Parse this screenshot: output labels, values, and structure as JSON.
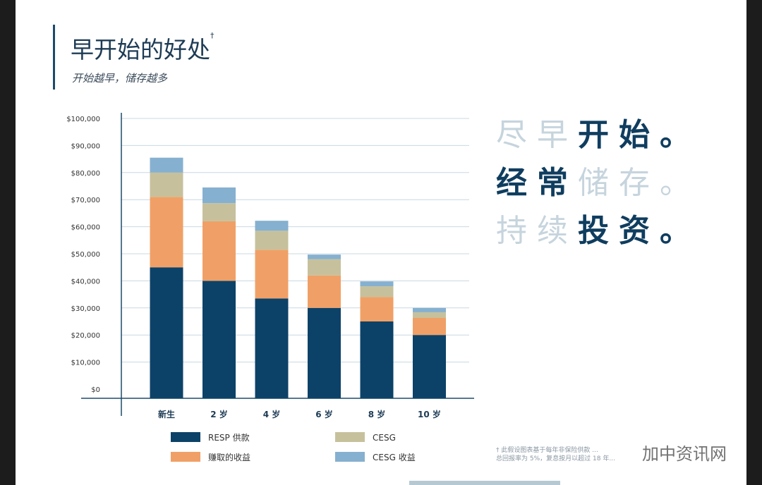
{
  "title": "早开始的好处",
  "title_mark": "†",
  "subtitle": "开始越早，储存越多",
  "slogan": [
    [
      {
        "t": "尽",
        "s": "l"
      },
      {
        "t": "早",
        "s": "l"
      },
      {
        "t": "开",
        "s": "d"
      },
      {
        "t": "始",
        "s": "d"
      },
      {
        "t": "。",
        "s": "d"
      }
    ],
    [
      {
        "t": "经",
        "s": "d"
      },
      {
        "t": "常",
        "s": "d"
      },
      {
        "t": "储",
        "s": "l"
      },
      {
        "t": "存",
        "s": "l"
      },
      {
        "t": "。",
        "s": "l"
      }
    ],
    [
      {
        "t": "持",
        "s": "l"
      },
      {
        "t": "续",
        "s": "l"
      },
      {
        "t": "投",
        "s": "d"
      },
      {
        "t": "资",
        "s": "d"
      },
      {
        "t": "。",
        "s": "d"
      }
    ]
  ],
  "footnote": [
    "† 此假设图表基于每年非保险供款 ...",
    "总回报率为 5%，复息按月以超过 18 年..."
  ],
  "watermark": "加中资讯网",
  "chart_data": {
    "type": "bar",
    "stacked": true,
    "categories": [
      "新生",
      "2 岁",
      "4 岁",
      "6 岁",
      "8 岁",
      "10 岁"
    ],
    "series": [
      {
        "name": "RESP 供款",
        "color": "#0c4268",
        "values": [
          45000,
          40000,
          33500,
          30000,
          25000,
          20000
        ]
      },
      {
        "name": "赚取的收益",
        "color": "#f0a066",
        "values": [
          26000,
          22000,
          18000,
          12000,
          9000,
          6300
        ]
      },
      {
        "name": "CESG",
        "color": "#c6c19c",
        "values": [
          9000,
          6700,
          7000,
          6000,
          4000,
          2100
        ]
      },
      {
        "name": "CESG 收益",
        "color": "#86b0cf",
        "values": [
          5500,
          5800,
          3700,
          1700,
          1800,
          1600
        ]
      }
    ],
    "ylim": [
      0,
      100000
    ],
    "yticks": [
      "$0",
      "$10,000",
      "$20,000",
      "$30,000",
      "$40,000",
      "$50,000",
      "$60,000",
      "$70,000",
      "$80,000",
      "$90,000",
      "$100,000"
    ],
    "grid": true,
    "legend": "bottom"
  }
}
